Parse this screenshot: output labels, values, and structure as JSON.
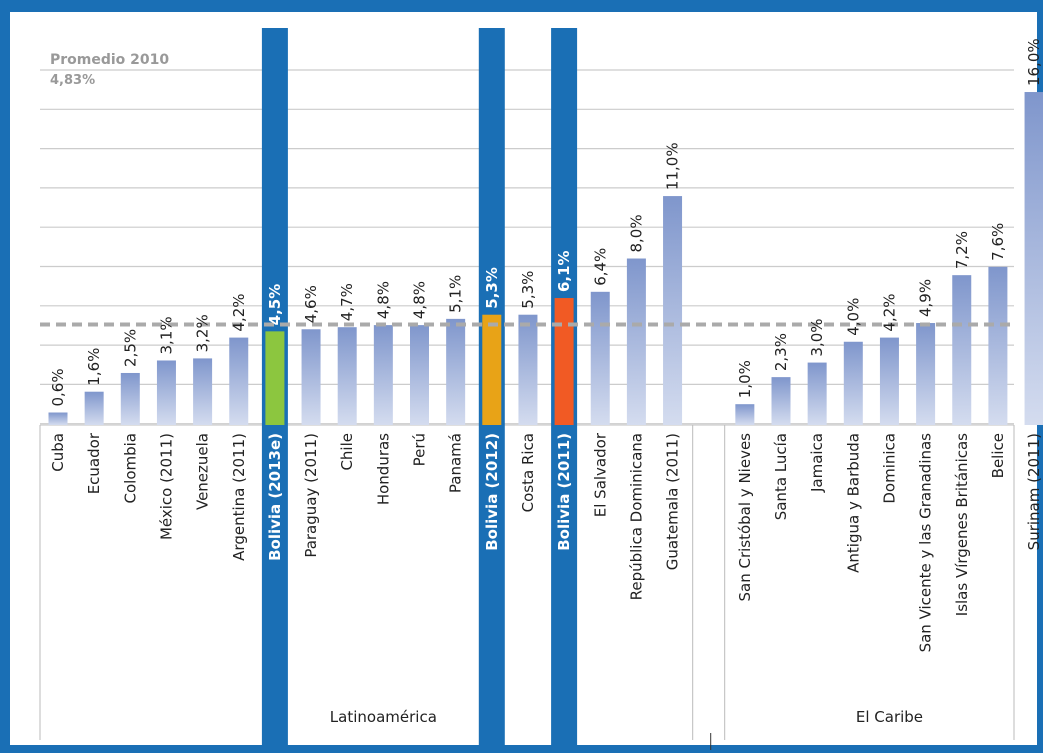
{
  "chart_data": {
    "type": "bar",
    "categories": [
      "Cuba",
      "Ecuador",
      "Colombia",
      "México (2011)",
      "Venezuela",
      "Argentina  (2011)",
      "Bolivia (2013e)",
      "Paraguay (2011)",
      "Chile",
      "Honduras",
      "Perú",
      "Panamá",
      "Bolivia (2012)",
      "Costa Rica",
      "Bolivia (2011)",
      "El Salvador",
      "República Dominicana",
      "Guatemala (2011)",
      "",
      "San Cristóbal y Nieves",
      "Santa Lucía",
      "Jamaica",
      "Antigua y Barbuda",
      "Dominica",
      "San Vicente y las Granadinas",
      "Islas Vírgenes Británicas",
      "Belice",
      "Surinam (2011)"
    ],
    "values": [
      0.6,
      1.6,
      2.5,
      3.1,
      3.2,
      4.2,
      4.5,
      4.6,
      4.7,
      4.8,
      4.8,
      5.1,
      5.3,
      5.3,
      6.1,
      6.4,
      8.0,
      11.0,
      null,
      1.0,
      2.3,
      3.0,
      4.0,
      4.2,
      4.9,
      7.2,
      7.6,
      16.0
    ],
    "value_labels": [
      "0,6%",
      "1,6%",
      "2,5%",
      "3,1%",
      "3,2%",
      "4,2%",
      "4,5%",
      "4,6%",
      "4,7%",
      "4,8%",
      "4,8%",
      "5,1%",
      "5,3%",
      "5,3%",
      "6,1%",
      "6,4%",
      "8,0%",
      "11,0%",
      "",
      "1,0%",
      "2,3%",
      "3,0%",
      "4,0%",
      "4,2%",
      "4,9%",
      "7,2%",
      "7,6%",
      "16,0%"
    ],
    "highlights": {
      "6": "#8cc63f",
      "12": "#e8a317",
      "14": "#f15a24"
    },
    "reference_line": {
      "value": 4.83,
      "label": "Promedio 2010",
      "value_label": "4,83%"
    },
    "groups": [
      {
        "label": "Latinoamérica",
        "from": 0,
        "to": 18
      },
      {
        "label": "El Caribe",
        "from": 19,
        "to": 27
      }
    ],
    "ylim": [
      0,
      18.5
    ],
    "grid": true,
    "colors": {
      "frame": "#1a6fb5",
      "bar_top": "#7f96cc",
      "bar_bottom": "#d4dcef",
      "grid": "#cccccc",
      "reference": "#aaaaaa"
    }
  }
}
